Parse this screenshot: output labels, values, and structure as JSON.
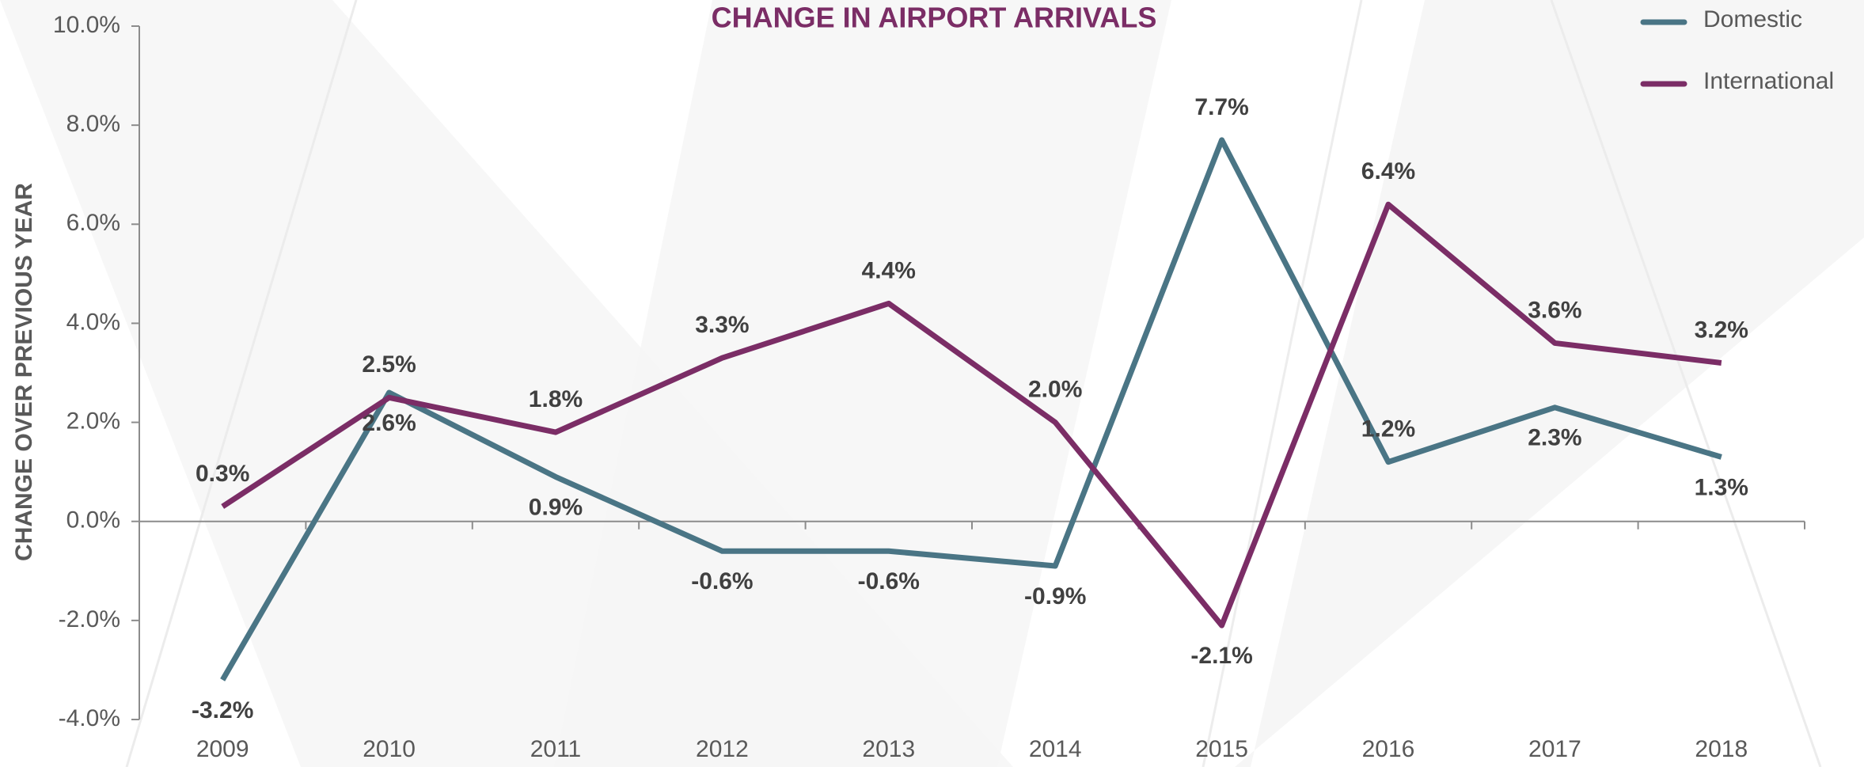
{
  "chart_data": {
    "type": "line",
    "title": "CHANGE IN AIRPORT ARRIVALS",
    "y_label": "CHANGE OVER PREVIOUS YEAR",
    "categories": [
      "2009",
      "2010",
      "2011",
      "2012",
      "2013",
      "2014",
      "2015",
      "2016",
      "2017",
      "2018"
    ],
    "series": [
      {
        "name": "Domestic",
        "color": "#4a7585",
        "values": [
          -3.2,
          2.6,
          0.9,
          -0.6,
          -0.6,
          -0.9,
          7.7,
          1.2,
          2.3,
          1.3
        ],
        "value_labels": [
          "-3.2%",
          "2.6%",
          "0.9%",
          "-0.6%",
          "-0.6%",
          "-0.9%",
          "7.7%",
          "1.2%",
          "2.3%",
          "1.3%"
        ]
      },
      {
        "name": "International",
        "color": "#7b2d66",
        "values": [
          0.3,
          2.5,
          1.8,
          3.3,
          4.4,
          2.0,
          -2.1,
          6.4,
          3.6,
          3.2
        ],
        "value_labels": [
          "0.3%",
          "2.5%",
          "1.8%",
          "3.3%",
          "4.4%",
          "2.0%",
          "-2.1%",
          "6.4%",
          "3.6%",
          "3.2%"
        ]
      }
    ],
    "ylim": [
      -4,
      10
    ],
    "yticks": [
      {
        "value": -4,
        "label": "-4.0%"
      },
      {
        "value": -2,
        "label": "-2.0%"
      },
      {
        "value": 0,
        "label": "0.0%"
      },
      {
        "value": 2,
        "label": "2.0%"
      },
      {
        "value": 4,
        "label": "4.0%"
      },
      {
        "value": 6,
        "label": "6.0%"
      },
      {
        "value": 8,
        "label": "8.0%"
      },
      {
        "value": 10,
        "label": "10.0%"
      }
    ],
    "legend": "top-right"
  }
}
